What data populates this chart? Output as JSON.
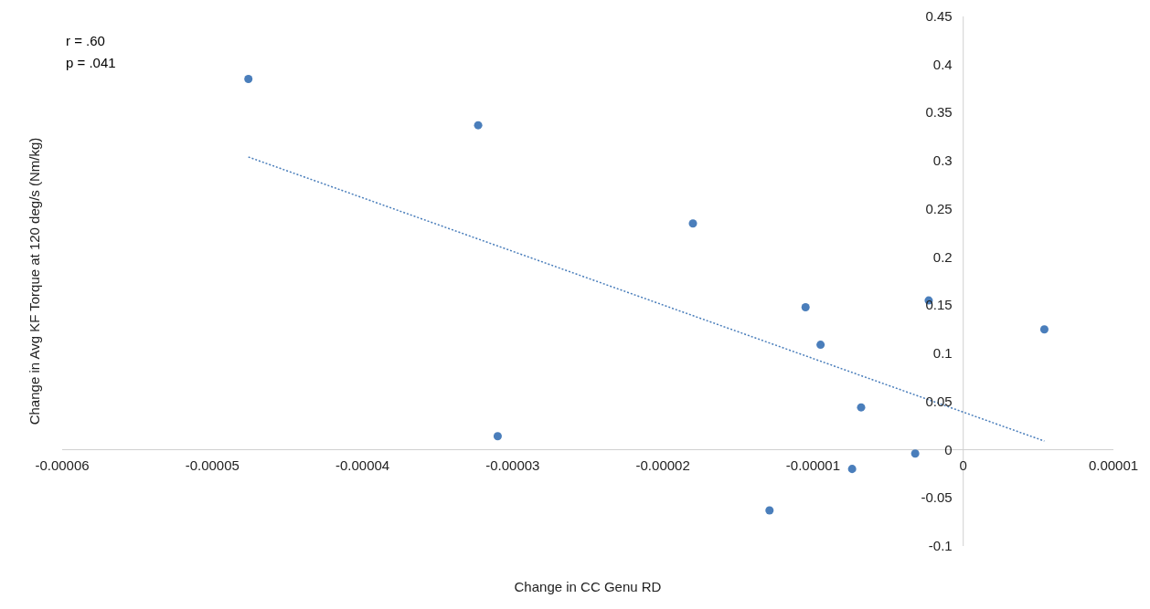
{
  "chart_data": {
    "type": "scatter",
    "xlabel": "Change in CC Genu RD",
    "ylabel": "Change in Avg KF Torque at 120 deg/s (Nm/kg)",
    "annotations": [
      "r = .60",
      "p = .041"
    ],
    "series": [
      {
        "color": "#4a7ebb",
        "marker": "circle",
        "x": [
          -4.76e-05,
          -3.23e-05,
          -3.1e-05,
          -1.8e-05,
          -1.29e-05,
          -1.05e-05,
          -9.5e-06,
          -7.4e-06,
          -6.8e-06,
          -3.2e-06,
          -2.3e-06,
          5.4e-06
        ],
        "values": [
          0.385,
          0.337,
          0.014,
          0.235,
          -0.063,
          0.148,
          0.109,
          -0.02,
          0.044,
          -0.004,
          0.155,
          0.125
        ]
      },
      {
        "type": "line",
        "color": "#4a7ebb",
        "marker": "none",
        "line_style": "dotted",
        "x": [
          -4.76e-05,
          5.4e-06
        ],
        "values": [
          0.304,
          0.009
        ]
      }
    ],
    "xlim": [
      -6e-05,
      1e-05
    ],
    "xticks": [
      {
        "value": -6e-05,
        "label": "-0.00006"
      },
      {
        "value": -5e-05,
        "label": "-0.00005"
      },
      {
        "value": -4e-05,
        "label": "-0.00004"
      },
      {
        "value": -3e-05,
        "label": "-0.00003"
      },
      {
        "value": -2e-05,
        "label": "-0.00002"
      },
      {
        "value": -1e-05,
        "label": "-0.00001"
      },
      0,
      {
        "value": 1e-05,
        "label": "0.00001"
      }
    ],
    "ylim": [
      -0.1,
      0.45
    ],
    "yticks": [
      -0.1,
      -0.05,
      0,
      0.05,
      0.1,
      0.15,
      0.2,
      0.25,
      0.3,
      0.35,
      0.4,
      0.45
    ],
    "grid": false
  }
}
